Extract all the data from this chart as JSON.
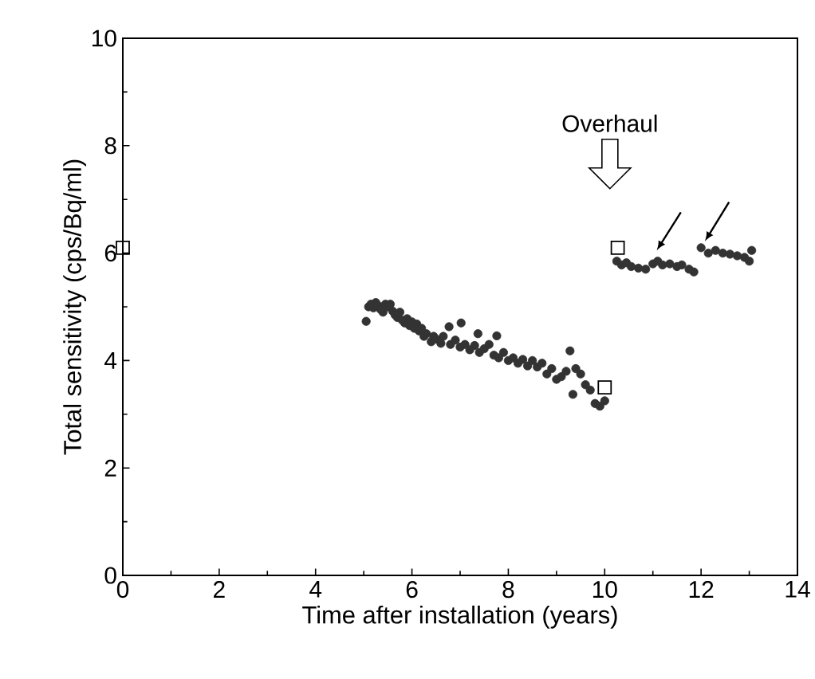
{
  "chart_data": {
    "type": "scatter",
    "xlabel": "Time after installation (years)",
    "ylabel": "Total sensitivity  (cps/Bq/ml)",
    "xlim": [
      0,
      14
    ],
    "ylim": [
      0,
      10
    ],
    "xticks": [
      0,
      2,
      4,
      6,
      8,
      10,
      12,
      14
    ],
    "yticks": [
      0,
      2,
      4,
      6,
      8,
      10
    ],
    "grid": false,
    "annotations": [
      "Overhaul"
    ],
    "series": [
      {
        "color": "#333333",
        "marker": "circle",
        "x": [
          5.05,
          5.1,
          5.15,
          5.2,
          5.25,
          5.3,
          5.35,
          5.4,
          5.45,
          5.5,
          5.55,
          5.6,
          5.65,
          5.7,
          5.75,
          5.8,
          5.85,
          5.9,
          5.95,
          6.0,
          6.05,
          6.1,
          6.15,
          6.2,
          6.25,
          6.3,
          6.4,
          6.45,
          6.5,
          6.6,
          6.65,
          6.77,
          6.8,
          6.9,
          7.0,
          7.02,
          7.1,
          7.2,
          7.3,
          7.37,
          7.4,
          7.5,
          7.6,
          7.7,
          7.76,
          7.8,
          7.9,
          8.0,
          8.1,
          8.2,
          8.3,
          8.4,
          8.5,
          8.6,
          8.7,
          8.8,
          8.9,
          9.0,
          9.1,
          9.2,
          9.28,
          9.34,
          9.4,
          9.5,
          9.6,
          9.7,
          9.8,
          9.9,
          10.0,
          10.25,
          10.35,
          10.45,
          10.55,
          10.7,
          10.85,
          11.0,
          11.1,
          11.2,
          11.35,
          11.5,
          11.6,
          11.75,
          11.85,
          12.0,
          12.15,
          12.3,
          12.45,
          12.6,
          12.75,
          12.9,
          13.0,
          13.05
        ],
        "values": [
          4.73,
          5.0,
          5.05,
          4.98,
          5.08,
          5.02,
          4.95,
          4.9,
          5.05,
          5.0,
          5.05,
          4.92,
          4.85,
          4.8,
          4.9,
          4.75,
          4.7,
          4.78,
          4.65,
          4.72,
          4.6,
          4.68,
          4.55,
          4.6,
          4.45,
          4.5,
          4.35,
          4.45,
          4.4,
          4.32,
          4.45,
          4.63,
          4.3,
          4.38,
          4.25,
          4.7,
          4.3,
          4.2,
          4.28,
          4.5,
          4.15,
          4.22,
          4.3,
          4.1,
          4.46,
          4.05,
          4.15,
          4.0,
          4.05,
          3.95,
          4.02,
          3.9,
          4.0,
          3.88,
          3.95,
          3.75,
          3.85,
          3.65,
          3.7,
          3.8,
          4.18,
          3.37,
          3.85,
          3.75,
          3.55,
          3.45,
          3.2,
          3.15,
          3.25,
          5.85,
          5.78,
          5.82,
          5.75,
          5.72,
          5.7,
          5.8,
          5.85,
          5.78,
          5.8,
          5.75,
          5.78,
          5.7,
          5.65,
          6.1,
          6.0,
          6.05,
          6.0,
          5.98,
          5.95,
          5.92,
          5.85,
          6.05
        ]
      },
      {
        "color": "#000000",
        "marker": "square",
        "x": [
          0,
          10.0,
          10.27
        ],
        "values": [
          6.1,
          3.5,
          6.1
        ]
      }
    ]
  }
}
